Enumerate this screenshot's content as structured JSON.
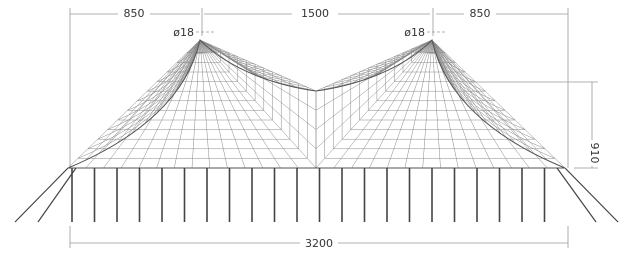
{
  "dimensions": {
    "top": [
      "850",
      "1500",
      "850"
    ],
    "peak_diameter": [
      "ø18",
      "ø18"
    ],
    "height": "910",
    "width": "3200"
  }
}
